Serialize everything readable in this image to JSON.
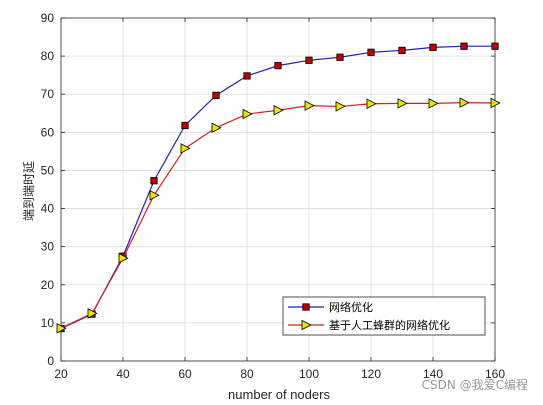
{
  "chart_data": {
    "type": "line",
    "title": "",
    "xlabel": "number of noders",
    "ylabel": "端到端时延",
    "xlim": [
      20,
      160
    ],
    "ylim": [
      0,
      90
    ],
    "xticks": [
      20,
      40,
      60,
      80,
      100,
      120,
      140,
      160
    ],
    "yticks": [
      0,
      10,
      20,
      30,
      40,
      50,
      60,
      70,
      80,
      90
    ],
    "grid": true,
    "legend_position": "bottom-right",
    "x": [
      20,
      30,
      40,
      50,
      60,
      70,
      80,
      90,
      100,
      110,
      120,
      130,
      140,
      150,
      160
    ],
    "series": [
      {
        "name": "网络优化",
        "line_color": "#1f1fc4",
        "marker": "square",
        "marker_color": "#c00000",
        "values": [
          8.5,
          12.3,
          27.5,
          47.3,
          61.8,
          69.7,
          74.8,
          77.5,
          78.9,
          79.7,
          81.0,
          81.5,
          82.3,
          82.6,
          82.6
        ]
      },
      {
        "name": "基于人工蜂群的网络优化",
        "line_color": "#d42020",
        "marker": "triangle-right",
        "marker_color": "#e6e600",
        "values": [
          8.6,
          12.5,
          27.0,
          43.5,
          55.8,
          61.2,
          64.8,
          65.8,
          67.0,
          66.8,
          67.5,
          67.6,
          67.6,
          67.8,
          67.7
        ]
      }
    ]
  },
  "watermark": "CSDN @我爱C编程"
}
